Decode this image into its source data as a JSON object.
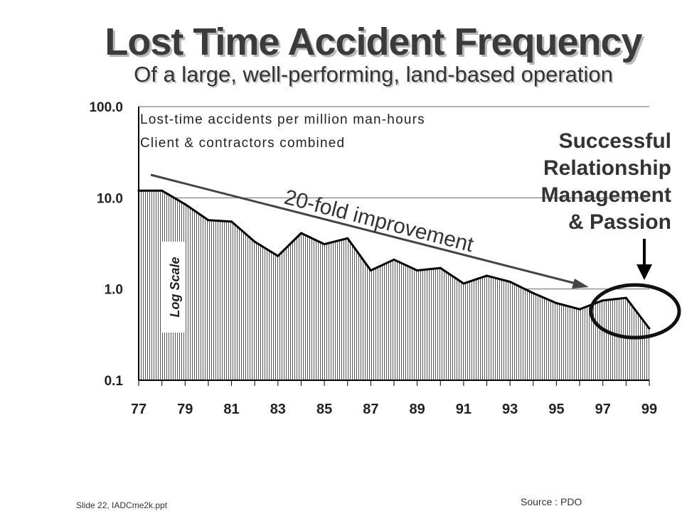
{
  "slide": {
    "title": "Lost Time Accident Frequency",
    "subtitle": "Of a large, well-performing, land-based operation",
    "footer_left": "Slide 22, IADCme2k.ppt",
    "footer_right": "Source : PDO"
  },
  "chart_data": {
    "type": "area",
    "title": "Lost Time Accident Frequency",
    "subtitle": "Of a large, well-performing, land-based operation",
    "note_lines": [
      "Lost-time accidents per million man-hours",
      "Client & contractors combined"
    ],
    "xlabel": "",
    "ylabel": "Log Scale",
    "yscale": "log",
    "ylim": [
      0.1,
      100
    ],
    "yticks": [
      100.0,
      10.0,
      1.0,
      0.1
    ],
    "ytick_labels": [
      "100.0",
      "10.0",
      "1.0",
      "0.1"
    ],
    "x": [
      77,
      78,
      79,
      80,
      81,
      82,
      83,
      84,
      85,
      86,
      87,
      88,
      89,
      90,
      91,
      92,
      93,
      94,
      95,
      96,
      97,
      98,
      99
    ],
    "values": [
      12.0,
      12.0,
      8.5,
      5.7,
      5.5,
      3.3,
      2.3,
      4.1,
      3.1,
      3.6,
      1.6,
      2.1,
      1.6,
      1.7,
      1.15,
      1.4,
      1.2,
      0.9,
      0.7,
      0.6,
      0.75,
      0.8,
      0.37
    ],
    "xtick_labels": [
      "77",
      "79",
      "81",
      "83",
      "85",
      "87",
      "89",
      "91",
      "93",
      "95",
      "97",
      "99"
    ],
    "trend": {
      "label": "20-fold improvement",
      "from": [
        77.5,
        18.0
      ],
      "to": [
        96.5,
        0.9
      ]
    },
    "callout": {
      "lines": [
        "Successful",
        "Relationship",
        "Management",
        "& Passion"
      ],
      "target_years": [
        97,
        99
      ]
    },
    "fill": "#a9a9a9",
    "line_color": "#000000"
  }
}
